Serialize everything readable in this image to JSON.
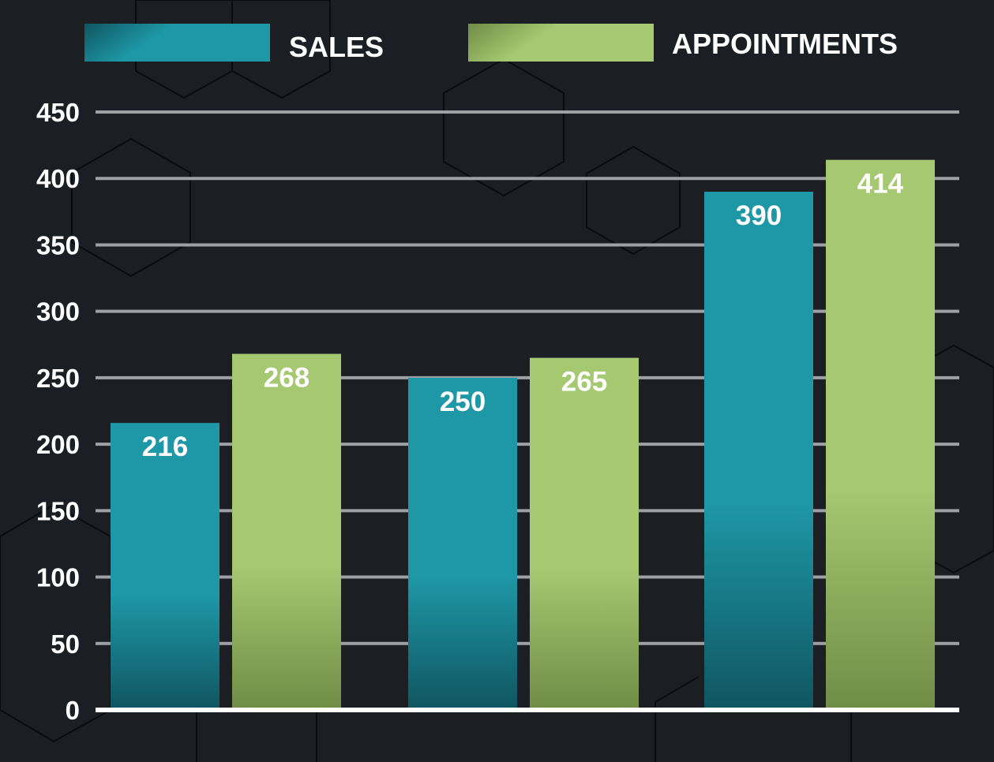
{
  "chart_data": {
    "type": "bar",
    "categories": [
      "",
      "",
      ""
    ],
    "series": [
      {
        "name": "SALES",
        "values": [
          216,
          250,
          390
        ]
      },
      {
        "name": "APPOINTMENTS",
        "values": [
          268,
          265,
          414
        ]
      }
    ],
    "title": "",
    "xlabel": "",
    "ylabel": "",
    "ylim": [
      0,
      450
    ],
    "yticks": [
      "0",
      "50",
      "100",
      "150",
      "200",
      "250",
      "300",
      "350",
      "400",
      "450"
    ],
    "grid": true,
    "legend_position": "top",
    "colors": {
      "background": "#1b1e23",
      "sales": "#1e97a6",
      "sales_dark": "#0f5560",
      "appointments": "#a5c871",
      "appointments_dark": "#6f8c45",
      "gridline": "#9ea0a4",
      "baseline": "#ffffff",
      "text": "#ffffff"
    }
  }
}
